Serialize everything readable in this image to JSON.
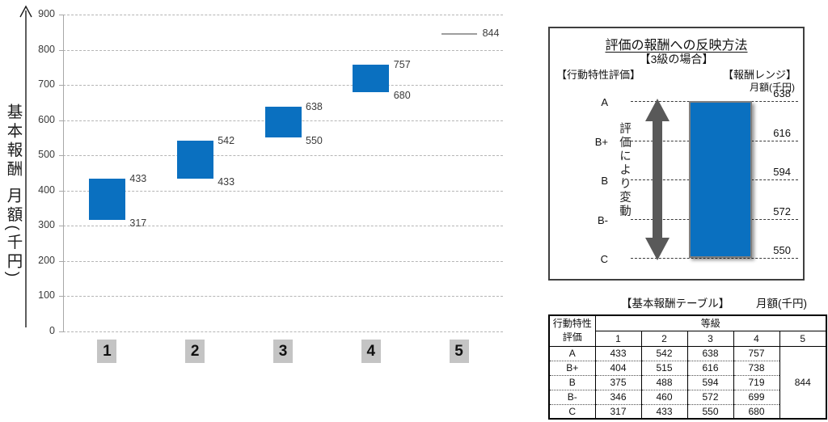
{
  "chart_data": {
    "type": "bar",
    "subtype": "floating-range-bars",
    "title": "",
    "xlabel": "",
    "ylabel": "基本報酬 月額(千円)",
    "ylim": [
      0,
      900
    ],
    "yticks": [
      0,
      100,
      200,
      300,
      400,
      500,
      600,
      700,
      800,
      900
    ],
    "grid": "horizontal-dashed",
    "legend": "none",
    "categories": [
      "1",
      "2",
      "3",
      "4",
      "5"
    ],
    "bars": [
      {
        "grade": "1",
        "min": 317,
        "max": 433
      },
      {
        "grade": "2",
        "min": 433,
        "max": 542
      },
      {
        "grade": "3",
        "min": 550,
        "max": 638
      },
      {
        "grade": "4",
        "min": 680,
        "max": 757
      },
      {
        "grade": "5",
        "value": 844,
        "style": "line"
      }
    ]
  },
  "diagram": {
    "title": "評価の報酬への反映方法",
    "subtitle": "【3級の場合】",
    "left_header": "【行動特性評価】",
    "right_header": "【報酬レンジ】",
    "unit": "月額(千円)",
    "arrow_label": "評価により変動",
    "levels": [
      {
        "grade": "A",
        "value": 638
      },
      {
        "grade": "B+",
        "value": 616
      },
      {
        "grade": "B",
        "value": 594
      },
      {
        "grade": "B-",
        "value": 572
      },
      {
        "grade": "C",
        "value": 550
      }
    ]
  },
  "table": {
    "title": "【基本報酬テーブル】",
    "unit": "月額(千円)",
    "row_header": "行動特性\n評価",
    "col_group_header": "等級",
    "columns": [
      "1",
      "2",
      "3",
      "4",
      "5"
    ],
    "rows": [
      {
        "label": "A",
        "values": [
          433,
          542,
          638,
          757
        ]
      },
      {
        "label": "B+",
        "values": [
          404,
          515,
          616,
          738
        ]
      },
      {
        "label": "B",
        "values": [
          375,
          488,
          594,
          719
        ]
      },
      {
        "label": "B-",
        "values": [
          346,
          460,
          572,
          699
        ]
      },
      {
        "label": "C",
        "values": [
          317,
          433,
          550,
          680
        ]
      }
    ],
    "grade5_value": 844
  },
  "colors": {
    "bar_blue": "#0a70c0",
    "grid_gray": "#b5b5b5",
    "axis_gray": "#a8a8a8",
    "xlabel_box_gray": "#c4c4c4",
    "arrow_gray": "#595959",
    "single_value_line_gray": "#9e9e9e",
    "diagram_bar_border": "#7f7f7f"
  }
}
